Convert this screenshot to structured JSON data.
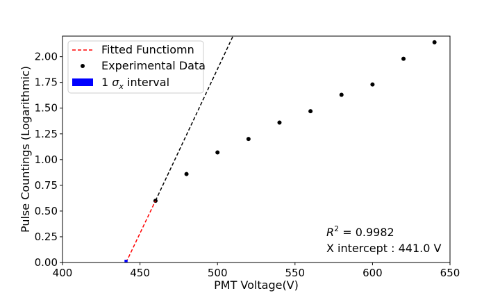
{
  "chart_data": {
    "type": "scatter",
    "xlabel": "PMT Voltage(V)",
    "ylabel": "Pulse Countings (Logarithmic)",
    "xlim": [
      400,
      650
    ],
    "ylim": [
      0,
      2.2
    ],
    "x_ticks": [
      400,
      450,
      500,
      550,
      600,
      650
    ],
    "y_ticks": [
      0.0,
      0.25,
      0.5,
      0.75,
      1.0,
      1.25,
      1.5,
      1.75,
      2.0
    ],
    "x_tick_labels": [
      "400",
      "450",
      "500",
      "550",
      "600",
      "650"
    ],
    "y_tick_labels": [
      "0.00",
      "0.25",
      "0.50",
      "0.75",
      "1.00",
      "1.25",
      "1.50",
      "1.75",
      "2.00"
    ],
    "grid": false,
    "legend_position": "top-left",
    "series": [
      {
        "name": "Experimental Data",
        "kind": "scatter",
        "color": "#000000",
        "x": [
          460,
          480,
          500,
          520,
          540,
          560,
          580,
          600,
          620,
          640
        ],
        "y": [
          0.6,
          0.86,
          1.07,
          1.2,
          1.36,
          1.47,
          1.63,
          1.73,
          1.98,
          2.14
        ]
      },
      {
        "name": "Fitted Functiomn",
        "kind": "line",
        "style": "dashed",
        "color": "#ff0000",
        "x": [
          441.0,
          460
        ],
        "y": [
          0.0,
          0.6
        ]
      },
      {
        "kind": "line",
        "style": "dashed",
        "color": "#000000",
        "x": [
          460,
          510
        ],
        "y": [
          0.6,
          2.2
        ]
      },
      {
        "name": "1 σx interval",
        "kind": "band",
        "color": "#0000ff",
        "x": [
          440.0,
          442.0
        ]
      }
    ],
    "annotations": {
      "r2_label": "R² = 0.9982",
      "x_intercept_label": "X intercept : 441.0 V"
    }
  }
}
